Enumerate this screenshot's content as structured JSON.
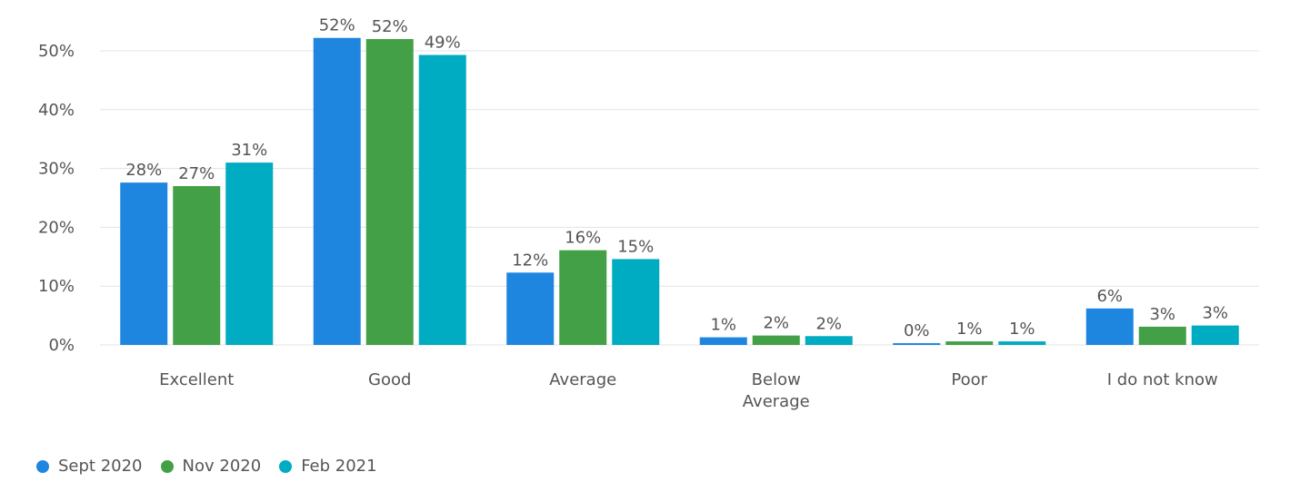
{
  "chart_data": {
    "type": "bar",
    "categories": [
      "Excellent",
      "Good",
      "Average",
      "Below Average",
      "Poor",
      "I do not know"
    ],
    "category_lines": [
      [
        "Excellent"
      ],
      [
        "Good"
      ],
      [
        "Average"
      ],
      [
        "Below",
        "Average"
      ],
      [
        "Poor"
      ],
      [
        "I do not know"
      ]
    ],
    "series": [
      {
        "name": "Sept 2020",
        "color": "#1f86e0",
        "values": [
          27.6,
          52.2,
          12.3,
          1.3,
          0.3,
          6.2
        ],
        "labels": [
          "28%",
          "52%",
          "12%",
          "1%",
          "0%",
          "6%"
        ]
      },
      {
        "name": "Nov 2020",
        "color": "#43a047",
        "values": [
          27.0,
          52.0,
          16.1,
          1.6,
          0.6,
          3.1
        ],
        "labels": [
          "27%",
          "52%",
          "16%",
          "2%",
          "1%",
          "3%"
        ]
      },
      {
        "name": "Feb 2021",
        "color": "#00acc1",
        "values": [
          31.0,
          49.3,
          14.6,
          1.5,
          0.6,
          3.3
        ],
        "labels": [
          "31%",
          "49%",
          "15%",
          "2%",
          "1%",
          "3%"
        ]
      }
    ],
    "yticks": [
      0,
      10,
      20,
      30,
      40,
      50
    ],
    "ytick_labels": [
      "0%",
      "10%",
      "20%",
      "30%",
      "40%",
      "50%"
    ],
    "ylim": [
      0,
      55
    ],
    "grid": true,
    "legend_position": "bottom-left"
  }
}
